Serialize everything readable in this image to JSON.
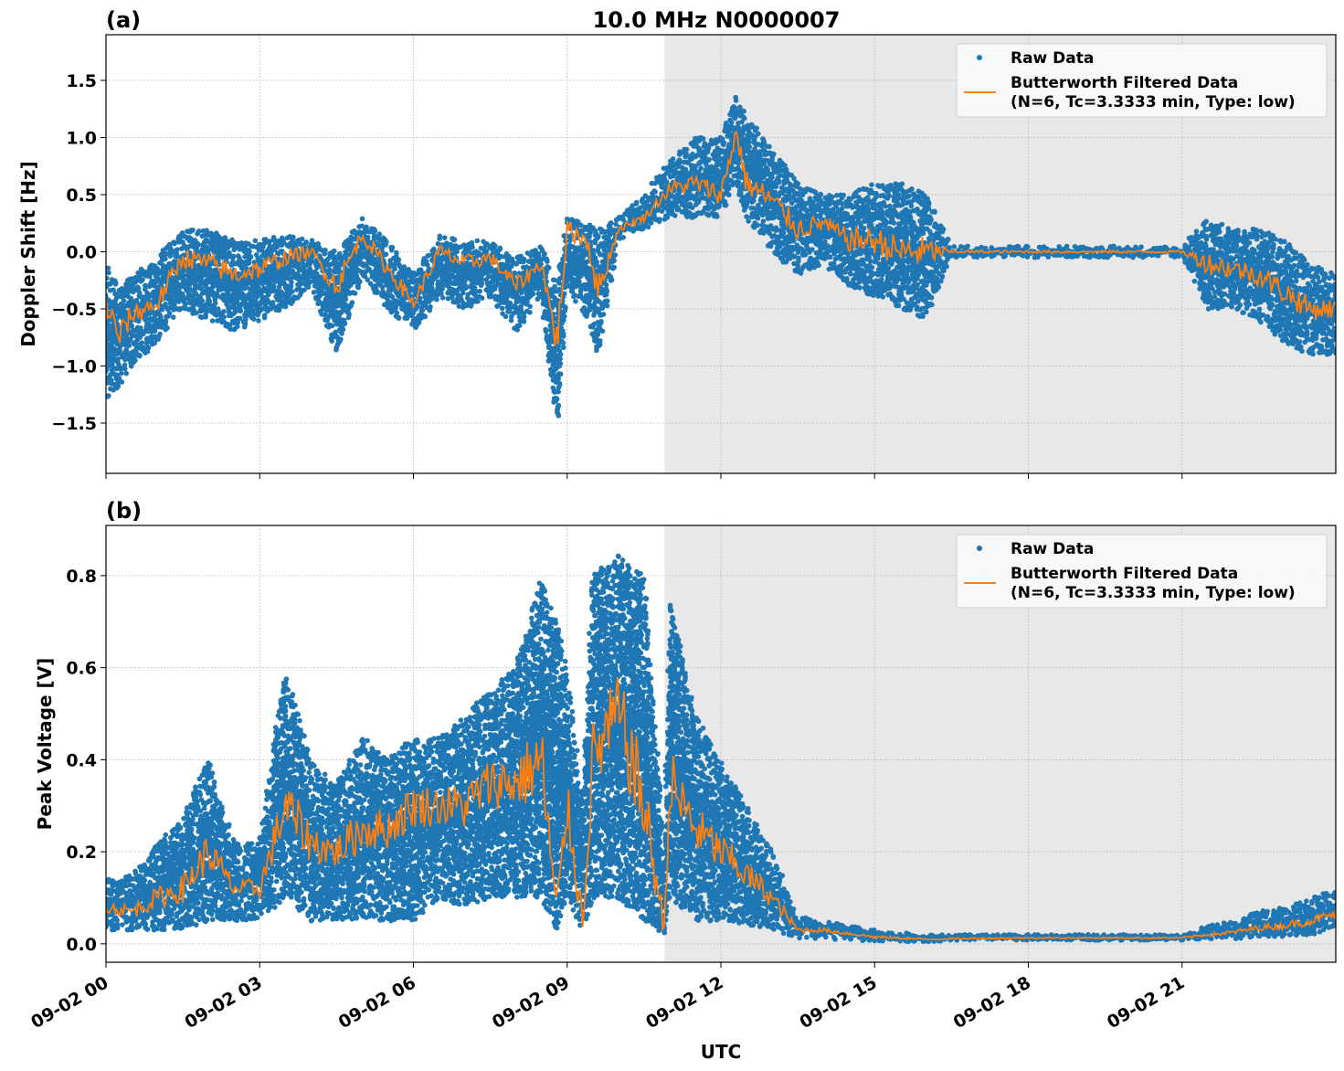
{
  "title": "10.0 MHz N0000007",
  "xlabel": "UTC",
  "x_tick_labels": [
    "09-02 00",
    "09-02 03",
    "09-02 06",
    "09-02 09",
    "09-02 12",
    "09-02 15",
    "09-02 18",
    "09-02 21"
  ],
  "legend": {
    "raw": "Raw Data",
    "filtered_line1": "Butterworth Filtered Data",
    "filtered_line2": "(N=6, Tc=3.3333 min, Type: low)"
  },
  "colors": {
    "raw": "#1f77b4",
    "filtered": "#ff7f0e",
    "shade": "#e8e8e8"
  },
  "chart_data": [
    {
      "type": "scatter+line",
      "panel_label": "(a)",
      "ylabel": "Doppler Shift [Hz]",
      "x_unit": "hours UTC on 09-02",
      "xlim": [
        0,
        24
      ],
      "ylim": [
        -1.94,
        1.9
      ],
      "y_ticks": [
        1.5,
        1.0,
        0.5,
        0.0,
        -0.5,
        -1.0,
        -1.5
      ],
      "y_tick_labels": [
        "1.5",
        "1.0",
        "0.5",
        "0.0",
        "−0.5",
        "−1.0",
        "−1.5"
      ],
      "grid": true,
      "legend_position": "top-right",
      "shaded_region": [
        10.9,
        24
      ],
      "x": [
        0,
        0.25,
        0.5,
        1.0,
        1.5,
        2.0,
        2.5,
        3.0,
        3.5,
        4.0,
        4.5,
        5.0,
        5.5,
        6.0,
        6.5,
        7.0,
        7.5,
        8.0,
        8.5,
        8.8,
        9.0,
        9.4,
        9.6,
        10.0,
        10.5,
        11.0,
        11.5,
        12.0,
        12.3,
        12.5,
        13.0,
        13.5,
        14.0,
        14.5,
        15.0,
        15.5,
        16.0,
        16.5,
        17,
        18,
        19,
        20,
        21.0,
        21.5,
        22.0,
        22.5,
        23.0,
        23.5,
        24.0
      ],
      "series": [
        {
          "name": "Butterworth Filtered Data",
          "values": [
            -0.45,
            -0.75,
            -0.55,
            -0.45,
            -0.05,
            -0.1,
            -0.2,
            -0.15,
            -0.05,
            0.0,
            -0.3,
            0.15,
            -0.15,
            -0.45,
            0.0,
            -0.1,
            -0.05,
            -0.3,
            -0.1,
            -0.8,
            0.2,
            0.1,
            -0.35,
            0.2,
            0.3,
            0.55,
            0.6,
            0.5,
            1.05,
            0.6,
            0.45,
            0.2,
            0.25,
            0.1,
            0.1,
            0.0,
            0.0,
            0.0,
            0.0,
            0.0,
            0.0,
            0.0,
            0.0,
            -0.1,
            -0.15,
            -0.2,
            -0.35,
            -0.5,
            -0.5
          ]
        },
        {
          "name": "Raw Data",
          "low": [
            -1.3,
            -1.2,
            -1.0,
            -0.8,
            -0.5,
            -0.6,
            -0.7,
            -0.6,
            -0.5,
            -0.3,
            -0.9,
            -0.2,
            -0.5,
            -0.7,
            -0.4,
            -0.5,
            -0.4,
            -0.7,
            -0.4,
            -1.6,
            -0.3,
            -0.6,
            -0.9,
            0.1,
            0.2,
            0.3,
            0.3,
            0.3,
            0.6,
            0.3,
            0.0,
            -0.2,
            -0.1,
            -0.3,
            -0.4,
            -0.5,
            -0.6,
            -0.05,
            -0.05,
            -0.05,
            -0.05,
            -0.05,
            -0.05,
            -0.5,
            -0.5,
            -0.6,
            -0.8,
            -0.9,
            -0.9
          ],
          "high": [
            -0.1,
            -0.3,
            -0.2,
            -0.05,
            0.2,
            0.2,
            0.1,
            0.1,
            0.15,
            0.1,
            0.0,
            0.3,
            0.1,
            -0.2,
            0.15,
            0.1,
            0.1,
            -0.05,
            0.05,
            -0.3,
            0.3,
            0.25,
            0.2,
            0.3,
            0.5,
            0.8,
            1.0,
            1.0,
            1.4,
            1.2,
            0.9,
            0.6,
            0.5,
            0.5,
            0.6,
            0.6,
            0.5,
            0.05,
            0.05,
            0.05,
            0.05,
            0.05,
            0.05,
            0.3,
            0.2,
            0.2,
            0.1,
            -0.1,
            -0.2
          ]
        }
      ]
    },
    {
      "type": "scatter+line",
      "panel_label": "(b)",
      "ylabel": "Peak Voltage [V]",
      "x_unit": "hours UTC on 09-02",
      "xlim": [
        0,
        24
      ],
      "ylim": [
        -0.04,
        0.909
      ],
      "y_ticks": [
        0.0,
        0.2,
        0.4,
        0.6,
        0.8
      ],
      "y_tick_labels": [
        "0.0",
        "0.2",
        "0.4",
        "0.6",
        "0.8"
      ],
      "grid": true,
      "legend_position": "top-right",
      "shaded_region": [
        10.9,
        24
      ],
      "x": [
        0,
        0.5,
        1.0,
        1.5,
        2.0,
        2.5,
        3.0,
        3.5,
        4.0,
        4.5,
        5.0,
        5.5,
        6.0,
        6.5,
        7.0,
        7.5,
        8.0,
        8.5,
        8.8,
        9.0,
        9.3,
        9.5,
        10.0,
        10.5,
        10.9,
        11.0,
        11.5,
        12.0,
        12.5,
        13.0,
        13.5,
        14.0,
        15.0,
        16.0,
        17.0,
        18.0,
        19.0,
        20.0,
        21.0,
        21.5,
        22.0,
        22.5,
        23.0,
        23.5,
        24.0
      ],
      "series": [
        {
          "name": "Butterworth Filtered Data",
          "values": [
            0.08,
            0.07,
            0.1,
            0.12,
            0.2,
            0.12,
            0.12,
            0.3,
            0.22,
            0.2,
            0.25,
            0.25,
            0.3,
            0.3,
            0.3,
            0.35,
            0.35,
            0.4,
            0.05,
            0.3,
            0.05,
            0.4,
            0.5,
            0.3,
            0.03,
            0.35,
            0.25,
            0.2,
            0.15,
            0.1,
            0.03,
            0.03,
            0.015,
            0.01,
            0.012,
            0.013,
            0.013,
            0.013,
            0.013,
            0.02,
            0.025,
            0.035,
            0.04,
            0.05,
            0.065
          ]
        },
        {
          "name": "Raw Data",
          "low": [
            0.03,
            0.03,
            0.03,
            0.03,
            0.05,
            0.05,
            0.05,
            0.1,
            0.05,
            0.05,
            0.05,
            0.05,
            0.05,
            0.1,
            0.08,
            0.1,
            0.1,
            0.1,
            0.02,
            0.1,
            0.02,
            0.1,
            0.1,
            0.05,
            0.02,
            0.1,
            0.05,
            0.05,
            0.04,
            0.03,
            0.01,
            0.01,
            0.005,
            0.005,
            0.008,
            0.008,
            0.008,
            0.008,
            0.008,
            0.01,
            0.01,
            0.015,
            0.015,
            0.02,
            0.03
          ],
          "high": [
            0.14,
            0.15,
            0.22,
            0.28,
            0.4,
            0.22,
            0.22,
            0.6,
            0.4,
            0.35,
            0.45,
            0.4,
            0.45,
            0.45,
            0.5,
            0.55,
            0.6,
            0.8,
            0.7,
            0.6,
            0.3,
            0.8,
            0.85,
            0.8,
            0.2,
            0.75,
            0.5,
            0.4,
            0.3,
            0.2,
            0.06,
            0.05,
            0.03,
            0.02,
            0.02,
            0.02,
            0.02,
            0.02,
            0.02,
            0.04,
            0.05,
            0.07,
            0.08,
            0.1,
            0.12
          ]
        }
      ]
    }
  ]
}
